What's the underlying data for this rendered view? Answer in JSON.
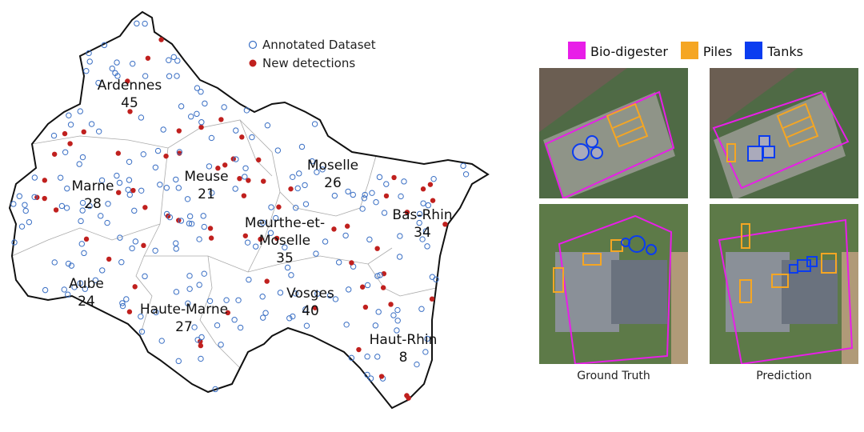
{
  "map_legend": {
    "annotated": "Annotated Dataset",
    "new": "New detections"
  },
  "regions": [
    {
      "name": "Ardennes",
      "count": "45"
    },
    {
      "name": "Marne",
      "count": "28"
    },
    {
      "name": "Meuse",
      "count": "21"
    },
    {
      "name": "Moselle",
      "count": "26"
    },
    {
      "name": "Meurthe-et-",
      "name2": "Moselle",
      "count": "35"
    },
    {
      "name": "Bas-Rhin",
      "count": "34"
    },
    {
      "name": "Aube",
      "count": "24"
    },
    {
      "name": "Haute-Marne",
      "count": "27"
    },
    {
      "name": "Vosges",
      "count": "40"
    },
    {
      "name": "Haut-Rhin",
      "count": "8"
    }
  ],
  "colors": {
    "annotated": "#3a6fc4",
    "new": "#c0201e",
    "biodigester": "#e81ee8",
    "piles": "#f5a623",
    "tanks": "#0a3cf0"
  },
  "class_legend": [
    {
      "label": "Bio-digester"
    },
    {
      "label": "Piles"
    },
    {
      "label": "Tanks"
    }
  ],
  "captions": {
    "gt": "Ground Truth",
    "pred": "Prediction"
  }
}
